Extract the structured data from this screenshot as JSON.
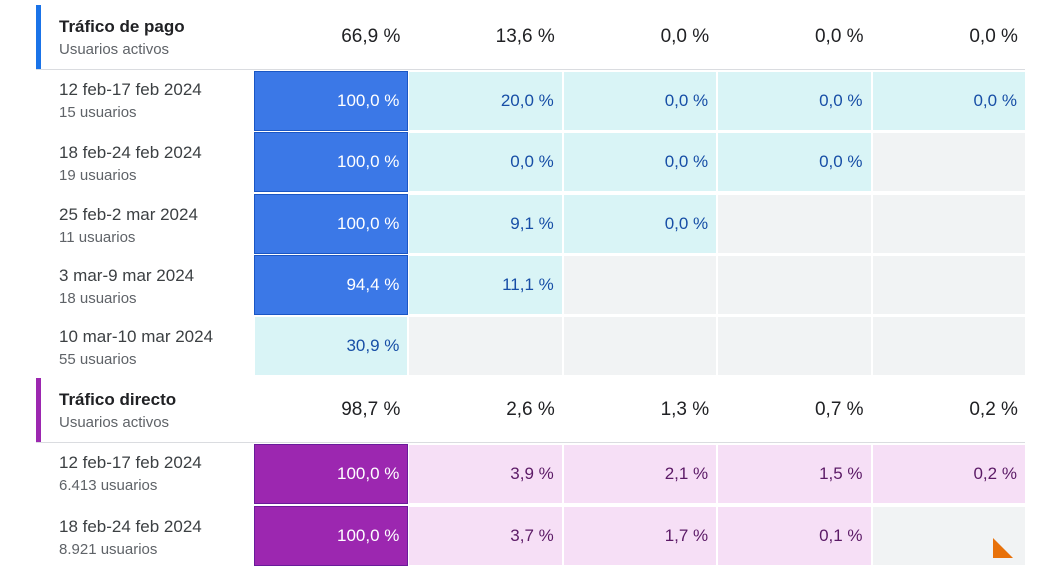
{
  "colors": {
    "paid_bar": "#1a73e8",
    "direct_bar": "#9c27b0",
    "paid_high": "#3b78e7",
    "paid_low": "#d9f4f6",
    "paid_low_text": "#174ea6",
    "direct_high": "#9c27b0",
    "direct_low": "#f6dff6",
    "direct_low_text": "#5b1a66",
    "empty": "#f1f3f4"
  },
  "segments": [
    {
      "key": "paid",
      "name": "Tráfico de pago",
      "subtitle": "Usuarios activos",
      "totals": [
        "66,9 %",
        "13,6 %",
        "0,0 %",
        "0,0 %",
        "0,0 %"
      ],
      "rows": [
        {
          "date": "12 feb-17 feb 2024",
          "users": "15 usuarios",
          "cells": [
            {
              "v": "100,0 %",
              "tone": "high"
            },
            {
              "v": "20,0 %",
              "tone": "low"
            },
            {
              "v": "0,0 %",
              "tone": "low"
            },
            {
              "v": "0,0 %",
              "tone": "low"
            },
            {
              "v": "0,0 %",
              "tone": "low"
            }
          ]
        },
        {
          "date": "18 feb-24 feb 2024",
          "users": "19 usuarios",
          "cells": [
            {
              "v": "100,0 %",
              "tone": "high"
            },
            {
              "v": "0,0 %",
              "tone": "low"
            },
            {
              "v": "0,0 %",
              "tone": "low"
            },
            {
              "v": "0,0 %",
              "tone": "low"
            },
            {
              "v": "",
              "tone": "empty"
            }
          ]
        },
        {
          "date": "25 feb-2 mar 2024",
          "users": "11 usuarios",
          "cells": [
            {
              "v": "100,0 %",
              "tone": "high"
            },
            {
              "v": "9,1 %",
              "tone": "low"
            },
            {
              "v": "0,0 %",
              "tone": "low"
            },
            {
              "v": "",
              "tone": "empty"
            },
            {
              "v": "",
              "tone": "empty"
            }
          ]
        },
        {
          "date": "3 mar-9 mar 2024",
          "users": "18 usuarios",
          "cells": [
            {
              "v": "94,4 %",
              "tone": "high"
            },
            {
              "v": "11,1 %",
              "tone": "low"
            },
            {
              "v": "",
              "tone": "empty"
            },
            {
              "v": "",
              "tone": "empty"
            },
            {
              "v": "",
              "tone": "empty"
            }
          ]
        },
        {
          "date": "10 mar-10 mar 2024",
          "users": "55 usuarios",
          "cells": [
            {
              "v": "30,9 %",
              "tone": "low"
            },
            {
              "v": "",
              "tone": "empty"
            },
            {
              "v": "",
              "tone": "empty"
            },
            {
              "v": "",
              "tone": "empty"
            },
            {
              "v": "",
              "tone": "empty"
            }
          ]
        }
      ]
    },
    {
      "key": "direct",
      "name": "Tráfico directo",
      "subtitle": "Usuarios activos",
      "totals": [
        "98,7 %",
        "2,6 %",
        "1,3 %",
        "0,7 %",
        "0,2 %"
      ],
      "rows": [
        {
          "date": "12 feb-17 feb 2024",
          "users": "6.413 usuarios",
          "cells": [
            {
              "v": "100,0 %",
              "tone": "high"
            },
            {
              "v": "3,9 %",
              "tone": "low"
            },
            {
              "v": "2,1 %",
              "tone": "low"
            },
            {
              "v": "1,5 %",
              "tone": "low"
            },
            {
              "v": "0,2 %",
              "tone": "low"
            }
          ]
        },
        {
          "date": "18 feb-24 feb 2024",
          "users": "8.921 usuarios",
          "cells": [
            {
              "v": "100,0 %",
              "tone": "high"
            },
            {
              "v": "3,7 %",
              "tone": "low"
            },
            {
              "v": "1,7 %",
              "tone": "low"
            },
            {
              "v": "0,1 %",
              "tone": "low"
            },
            {
              "v": "",
              "tone": "empty"
            }
          ]
        }
      ]
    }
  ]
}
